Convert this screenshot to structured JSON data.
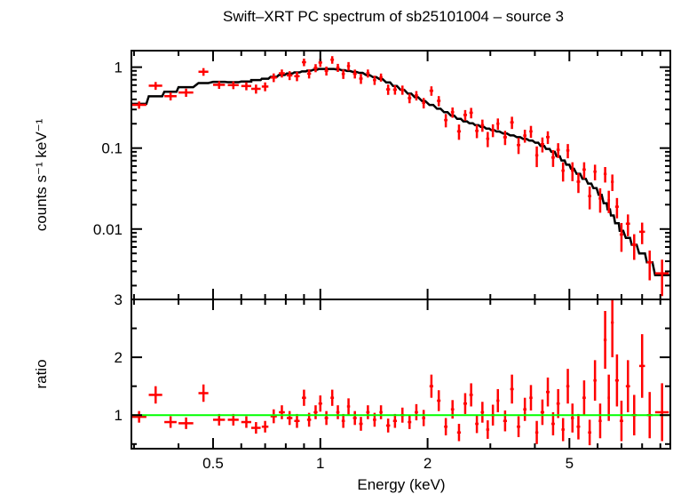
{
  "chart_data": {
    "type": "scatter",
    "title": "Swift–XRT PC spectrum of sb25101004 – source 3",
    "xlabel": "Energy (keV)",
    "xscale": "log",
    "xlim": [
      0.295,
      9.6
    ],
    "x_tick_labels": [
      "0.5",
      "1",
      "2",
      "5"
    ],
    "x_ticks": [
      0.5,
      1,
      2,
      5
    ],
    "colors": {
      "data": "#ff0000",
      "model": "#000000",
      "unity_line": "#00ff00"
    },
    "panels": [
      {
        "name": "spectrum",
        "ylabel": "counts s⁻¹ keV⁻¹",
        "yscale": "log",
        "ylim": [
          0.00135,
          1.6
        ],
        "y_ticks": [
          1,
          0.1,
          0.01
        ],
        "y_tick_labels": [
          "1",
          "0.1",
          "0.01"
        ]
      },
      {
        "name": "ratio",
        "ylabel": "ratio",
        "yscale": "linear",
        "ylim": [
          0.42,
          3
        ],
        "y_ticks": [
          1,
          2,
          3
        ],
        "y_tick_labels": [
          "1",
          "2",
          "3"
        ],
        "reference_line": 1
      }
    ],
    "model": {
      "energy": [
        0.3,
        0.35,
        0.4,
        0.45,
        0.5,
        0.6,
        0.7,
        0.8,
        1.0,
        1.1,
        1.3,
        1.5,
        2.0,
        2.5,
        3.0,
        4.0,
        4.5,
        5.0,
        6.0,
        7.0,
        8.0,
        9.0,
        9.6
      ],
      "counts": [
        0.33,
        0.45,
        0.53,
        0.62,
        0.66,
        0.65,
        0.72,
        0.82,
        0.95,
        0.95,
        0.85,
        0.7,
        0.36,
        0.22,
        0.17,
        0.12,
        0.09,
        0.06,
        0.03,
        0.0095,
        0.005,
        0.0027,
        0.0027
      ]
    },
    "points": {
      "columns": [
        "energy_keV",
        "energy_halfwidth_keV",
        "ratio",
        "ratio_err"
      ],
      "rows": [
        [
          0.31,
          0.015,
          0.97,
          0.1
        ],
        [
          0.345,
          0.015,
          1.35,
          0.15
        ],
        [
          0.38,
          0.015,
          0.88,
          0.1
        ],
        [
          0.42,
          0.02,
          0.86,
          0.1
        ],
        [
          0.47,
          0.015,
          1.38,
          0.15
        ],
        [
          0.52,
          0.02,
          0.92,
          0.1
        ],
        [
          0.57,
          0.02,
          0.92,
          0.1
        ],
        [
          0.62,
          0.02,
          0.88,
          0.1
        ],
        [
          0.66,
          0.02,
          0.78,
          0.1
        ],
        [
          0.7,
          0.015,
          0.8,
          0.1
        ],
        [
          0.74,
          0.015,
          0.98,
          0.12
        ],
        [
          0.78,
          0.015,
          1.05,
          0.12
        ],
        [
          0.82,
          0.015,
          0.95,
          0.12
        ],
        [
          0.86,
          0.015,
          0.9,
          0.12
        ],
        [
          0.9,
          0.012,
          1.3,
          0.14
        ],
        [
          0.93,
          0.012,
          0.92,
          0.12
        ],
        [
          0.97,
          0.012,
          1.05,
          0.12
        ],
        [
          1.0,
          0.012,
          1.2,
          0.14
        ],
        [
          1.04,
          0.012,
          0.95,
          0.12
        ],
        [
          1.08,
          0.012,
          1.3,
          0.14
        ],
        [
          1.12,
          0.012,
          1.05,
          0.12
        ],
        [
          1.16,
          0.012,
          0.9,
          0.12
        ],
        [
          1.2,
          0.012,
          1.15,
          0.14
        ],
        [
          1.25,
          0.015,
          0.95,
          0.12
        ],
        [
          1.3,
          0.015,
          0.85,
          0.12
        ],
        [
          1.36,
          0.015,
          1.05,
          0.12
        ],
        [
          1.42,
          0.015,
          0.92,
          0.12
        ],
        [
          1.48,
          0.015,
          1.05,
          0.12
        ],
        [
          1.55,
          0.02,
          0.82,
          0.12
        ],
        [
          1.62,
          0.02,
          0.9,
          0.12
        ],
        [
          1.7,
          0.02,
          1.0,
          0.13
        ],
        [
          1.78,
          0.02,
          0.88,
          0.12
        ],
        [
          1.86,
          0.02,
          1.05,
          0.14
        ],
        [
          1.95,
          0.02,
          0.95,
          0.14
        ],
        [
          2.05,
          0.025,
          1.5,
          0.2
        ],
        [
          2.15,
          0.025,
          1.25,
          0.18
        ],
        [
          2.25,
          0.025,
          0.8,
          0.15
        ],
        [
          2.35,
          0.025,
          1.1,
          0.16
        ],
        [
          2.45,
          0.03,
          0.7,
          0.15
        ],
        [
          2.55,
          0.03,
          1.2,
          0.18
        ],
        [
          2.65,
          0.03,
          1.35,
          0.2
        ],
        [
          2.75,
          0.03,
          0.85,
          0.16
        ],
        [
          2.85,
          0.03,
          1.05,
          0.18
        ],
        [
          2.95,
          0.03,
          0.75,
          0.16
        ],
        [
          3.05,
          0.03,
          1.0,
          0.18
        ],
        [
          3.15,
          0.03,
          1.25,
          0.2
        ],
        [
          3.3,
          0.04,
          0.9,
          0.18
        ],
        [
          3.45,
          0.04,
          1.45,
          0.25
        ],
        [
          3.6,
          0.04,
          0.8,
          0.18
        ],
        [
          3.75,
          0.04,
          1.1,
          0.2
        ],
        [
          3.9,
          0.04,
          1.3,
          0.22
        ],
        [
          4.05,
          0.04,
          0.7,
          0.2
        ],
        [
          4.2,
          0.05,
          1.05,
          0.22
        ],
        [
          4.35,
          0.05,
          1.4,
          0.25
        ],
        [
          4.5,
          0.05,
          0.85,
          0.2
        ],
        [
          4.65,
          0.05,
          1.2,
          0.25
        ],
        [
          4.8,
          0.05,
          0.75,
          0.2
        ],
        [
          4.95,
          0.05,
          1.5,
          0.3
        ],
        [
          5.1,
          0.05,
          0.95,
          0.25
        ],
        [
          5.3,
          0.06,
          0.8,
          0.22
        ],
        [
          5.5,
          0.06,
          1.3,
          0.3
        ],
        [
          5.7,
          0.06,
          0.7,
          0.22
        ],
        [
          5.9,
          0.06,
          1.6,
          0.35
        ],
        [
          6.1,
          0.06,
          0.9,
          0.3
        ],
        [
          6.3,
          0.06,
          2.3,
          0.5
        ],
        [
          6.45,
          0.05,
          1.3,
          0.4
        ],
        [
          6.6,
          0.06,
          2.6,
          0.6
        ],
        [
          6.8,
          0.08,
          1.6,
          0.45
        ],
        [
          7.0,
          0.08,
          0.9,
          0.35
        ],
        [
          7.3,
          0.1,
          1.5,
          0.45
        ],
        [
          7.6,
          0.12,
          1.0,
          0.35
        ],
        [
          8.0,
          0.15,
          1.85,
          0.55
        ],
        [
          8.4,
          0.15,
          1.0,
          0.4
        ],
        [
          9.1,
          0.4,
          1.05,
          0.5
        ]
      ]
    }
  }
}
